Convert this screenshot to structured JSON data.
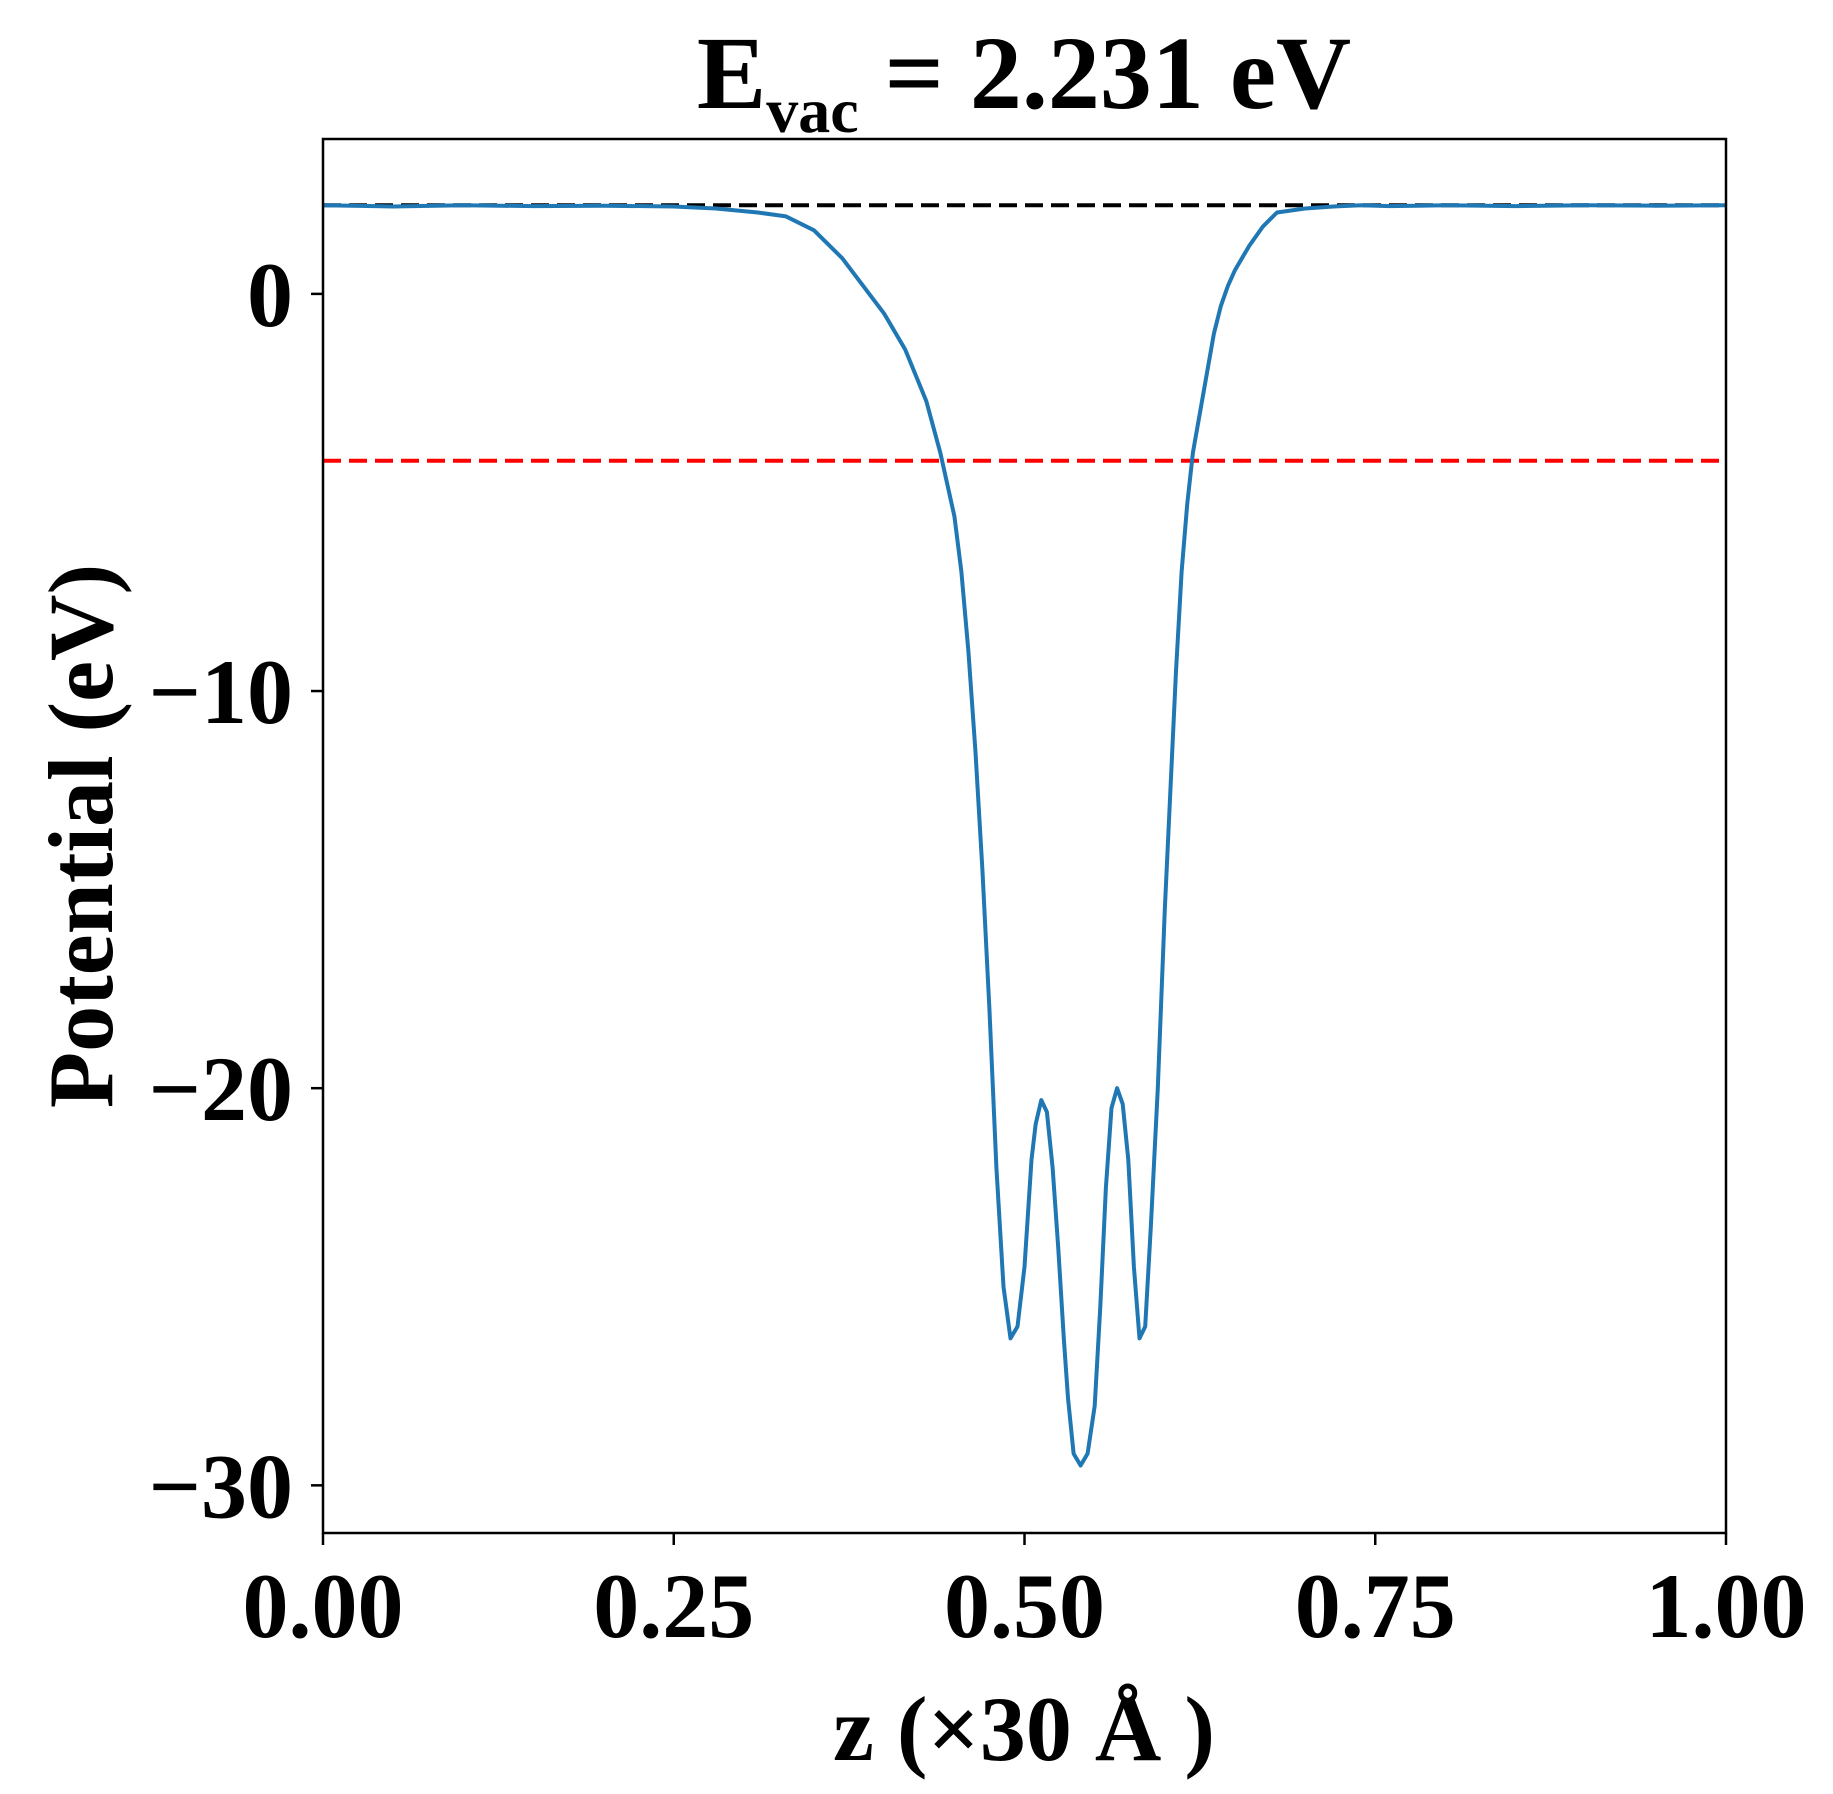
{
  "chart_data": {
    "type": "line",
    "title": {
      "main": "E",
      "sub": "vac",
      "rest": " = 2.231 eV"
    },
    "xlabel": "z (×30 Å )",
    "ylabel": "Potential (eV)",
    "xlim": [
      0,
      1
    ],
    "ylim": [
      -31.2,
      3.9
    ],
    "xticks": [
      {
        "value": 0.0,
        "label": "0.00"
      },
      {
        "value": 0.25,
        "label": "0.25"
      },
      {
        "value": 0.5,
        "label": "0.50"
      },
      {
        "value": 0.75,
        "label": "0.75"
      },
      {
        "value": 1.0,
        "label": "1.00"
      }
    ],
    "yticks": [
      {
        "value": 0,
        "label": "0"
      },
      {
        "value": -10,
        "label": "−10"
      },
      {
        "value": -20,
        "label": "−20"
      },
      {
        "value": -30,
        "label": "−30"
      }
    ],
    "grid": false,
    "series": [
      {
        "color": "#1f77b4",
        "x": [
          0.0,
          0.05,
          0.1,
          0.15,
          0.2,
          0.25,
          0.28,
          0.31,
          0.33,
          0.35,
          0.37,
          0.385,
          0.4,
          0.415,
          0.43,
          0.44,
          0.45,
          0.455,
          0.46,
          0.465,
          0.47,
          0.475,
          0.48,
          0.485,
          0.49,
          0.495,
          0.5,
          0.505,
          0.508,
          0.512,
          0.516,
          0.52,
          0.524,
          0.528,
          0.531,
          0.535,
          0.54,
          0.545,
          0.55,
          0.554,
          0.558,
          0.562,
          0.566,
          0.57,
          0.574,
          0.578,
          0.582,
          0.586,
          0.59,
          0.595,
          0.6,
          0.604,
          0.608,
          0.612,
          0.616,
          0.62,
          0.625,
          0.63,
          0.635,
          0.64,
          0.645,
          0.65,
          0.66,
          0.67,
          0.68,
          0.7,
          0.72,
          0.74,
          0.76,
          0.78,
          0.8,
          0.85,
          0.9,
          0.95,
          1.0
        ],
        "y": [
          2.231,
          2.2,
          2.23,
          2.21,
          2.22,
          2.2,
          2.15,
          2.05,
          1.95,
          1.6,
          0.9,
          0.2,
          -0.5,
          -1.4,
          -2.7,
          -4.0,
          -5.6,
          -7.0,
          -9.0,
          -11.5,
          -14.5,
          -18.0,
          -22.0,
          -25.0,
          -26.3,
          -26.0,
          -24.5,
          -21.8,
          -20.9,
          -20.3,
          -20.6,
          -22.0,
          -24.0,
          -26.3,
          -27.8,
          -29.2,
          -29.5,
          -29.2,
          -28.0,
          -25.5,
          -22.5,
          -20.5,
          -20.0,
          -20.4,
          -21.8,
          -24.5,
          -26.3,
          -26.0,
          -23.5,
          -20.0,
          -15.5,
          -12.5,
          -9.5,
          -7.0,
          -5.3,
          -4.0,
          -3.0,
          -2.0,
          -1.0,
          -0.3,
          0.2,
          0.6,
          1.2,
          1.7,
          2.05,
          2.15,
          2.2,
          2.23,
          2.21,
          2.22,
          2.23,
          2.21,
          2.23,
          2.22,
          2.231
        ]
      }
    ],
    "hlines": [
      {
        "y": 2.231,
        "color": "#000000",
        "style": "dashed"
      },
      {
        "y": -4.2,
        "color": "#ff0000",
        "style": "dashed"
      }
    ]
  }
}
